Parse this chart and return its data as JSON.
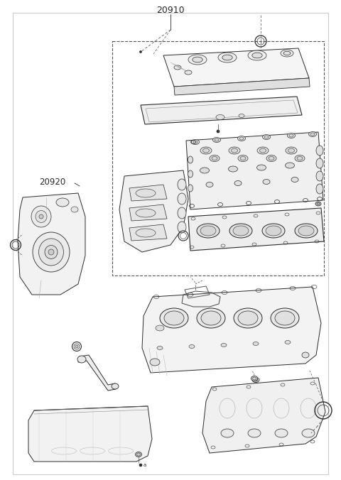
{
  "title": "20910",
  "label_20920": "20920",
  "bg_color": "#ffffff",
  "lc": "#2a2a2a",
  "lc_light": "#888888",
  "lc_mid": "#555555",
  "fig_width": 4.8,
  "fig_height": 6.76,
  "dpi": 100,
  "border_color": "#aaaaaa"
}
